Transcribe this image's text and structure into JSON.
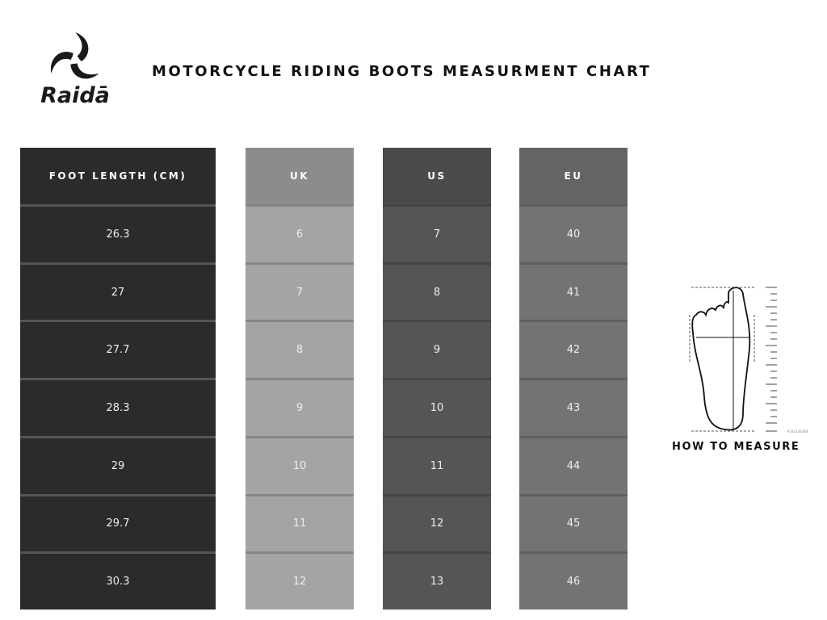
{
  "brand": {
    "name": "Raidā"
  },
  "title": "MOTORCYCLE RIDING BOOTS MEASURMENT CHART",
  "columns": [
    {
      "header": "FOOT LENGTH (CM)",
      "values": [
        "26.3",
        "27",
        "27.7",
        "28.3",
        "29",
        "29.7",
        "30.3"
      ]
    },
    {
      "header": "UK",
      "values": [
        "6",
        "7",
        "8",
        "9",
        "10",
        "11",
        "12"
      ]
    },
    {
      "header": "US",
      "values": [
        "7",
        "8",
        "9",
        "10",
        "11",
        "12",
        "13"
      ]
    },
    {
      "header": "EU",
      "values": [
        "40",
        "41",
        "42",
        "43",
        "44",
        "45",
        "46"
      ]
    }
  ],
  "how_to_measure": "HOW TO MEASURE",
  "stock_id": "#344136348",
  "colors": {
    "foot_length": "#2b2b2b",
    "uk": "#a4a4a4",
    "us": "#555555",
    "eu": "#737373"
  }
}
